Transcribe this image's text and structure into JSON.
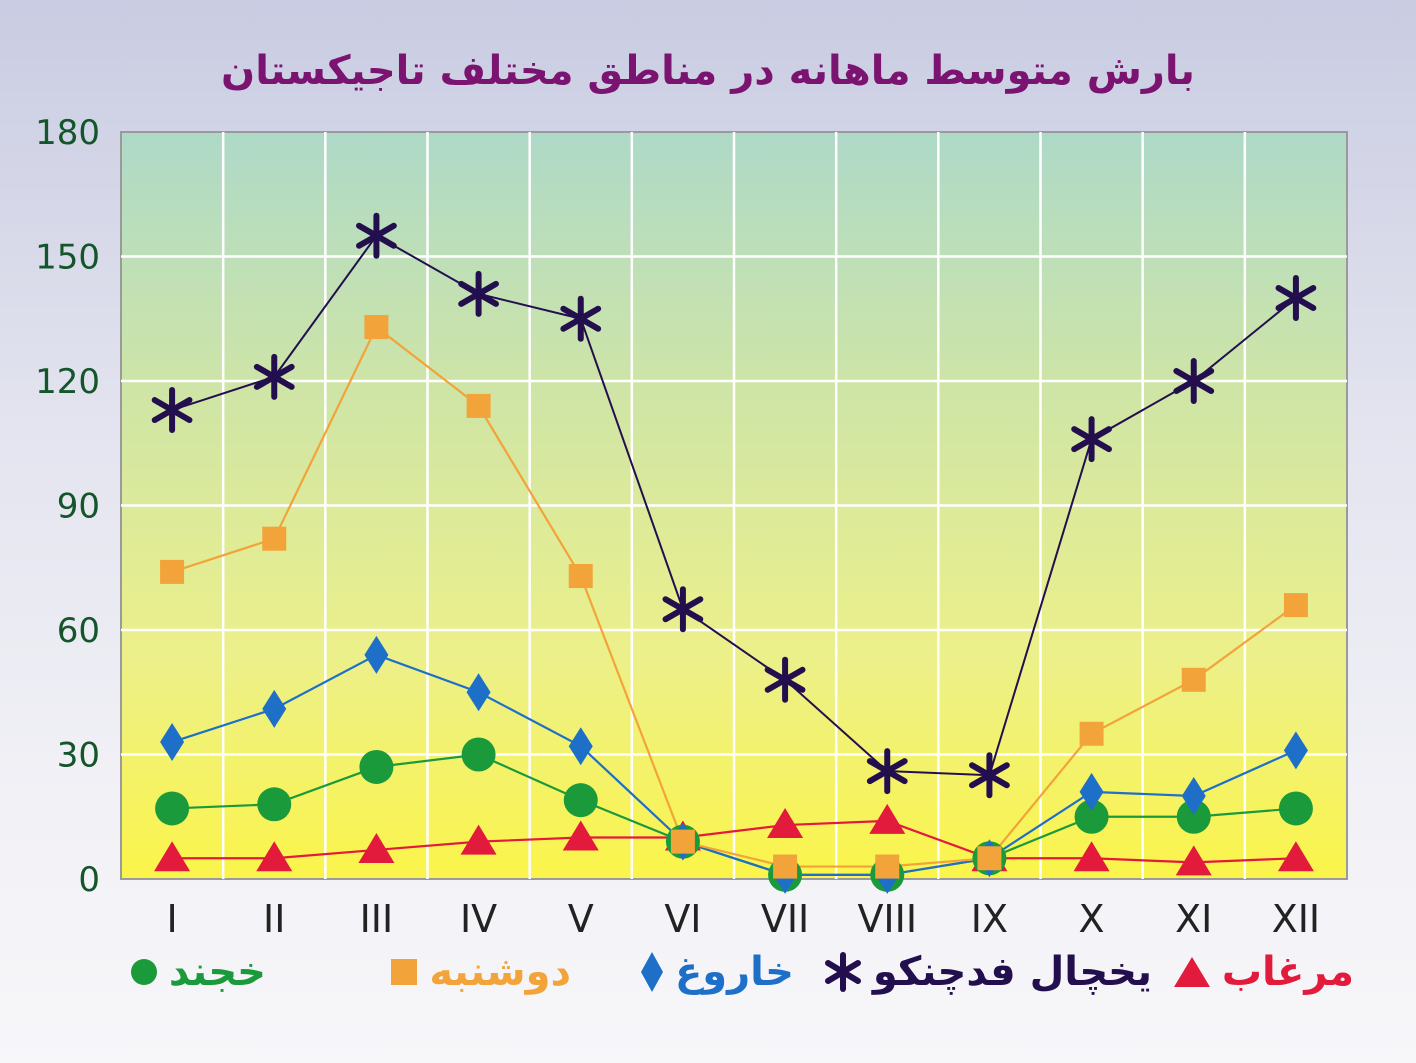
{
  "chart_data": {
    "type": "line",
    "title": "بارش متوسط ماهانه در مناطق مختلف تاجیکستان",
    "xlabel": "",
    "ylabel": "",
    "categories": [
      "I",
      "II",
      "III",
      "IV",
      "V",
      "VI",
      "VII",
      "VIII",
      "IX",
      "X",
      "XI",
      "XII"
    ],
    "ylim": [
      0,
      180
    ],
    "yticks": [
      "0",
      "30",
      "60",
      "90",
      "120",
      "150",
      "180"
    ],
    "grid": true,
    "legend_position": "bottom",
    "series": [
      {
        "name": "خجند",
        "marker": "circle",
        "color": "#1a9a3a",
        "values": [
          17,
          18,
          27,
          30,
          19,
          9,
          1,
          1,
          5,
          15,
          15,
          17
        ]
      },
      {
        "name": "دوشنبه",
        "marker": "square",
        "color": "#f2a33a",
        "values": [
          74,
          82,
          133,
          114,
          73,
          9,
          3,
          3,
          5,
          35,
          48,
          66
        ]
      },
      {
        "name": "خاروغ",
        "marker": "diamond",
        "color": "#1e6fc8",
        "values": [
          33,
          41,
          54,
          45,
          32,
          9,
          1,
          1,
          5,
          21,
          20,
          31
        ]
      },
      {
        "name": "یخچال فدچنکو",
        "marker": "asterisk",
        "color": "#230f4e",
        "values": [
          113,
          121,
          155,
          141,
          135,
          65,
          48,
          26,
          25,
          106,
          120,
          140
        ]
      },
      {
        "name": "مرغاب",
        "marker": "triangle",
        "color": "#e21a3c",
        "values": [
          5,
          5,
          7,
          9,
          10,
          10,
          13,
          14,
          5,
          5,
          4,
          5
        ]
      }
    ]
  }
}
